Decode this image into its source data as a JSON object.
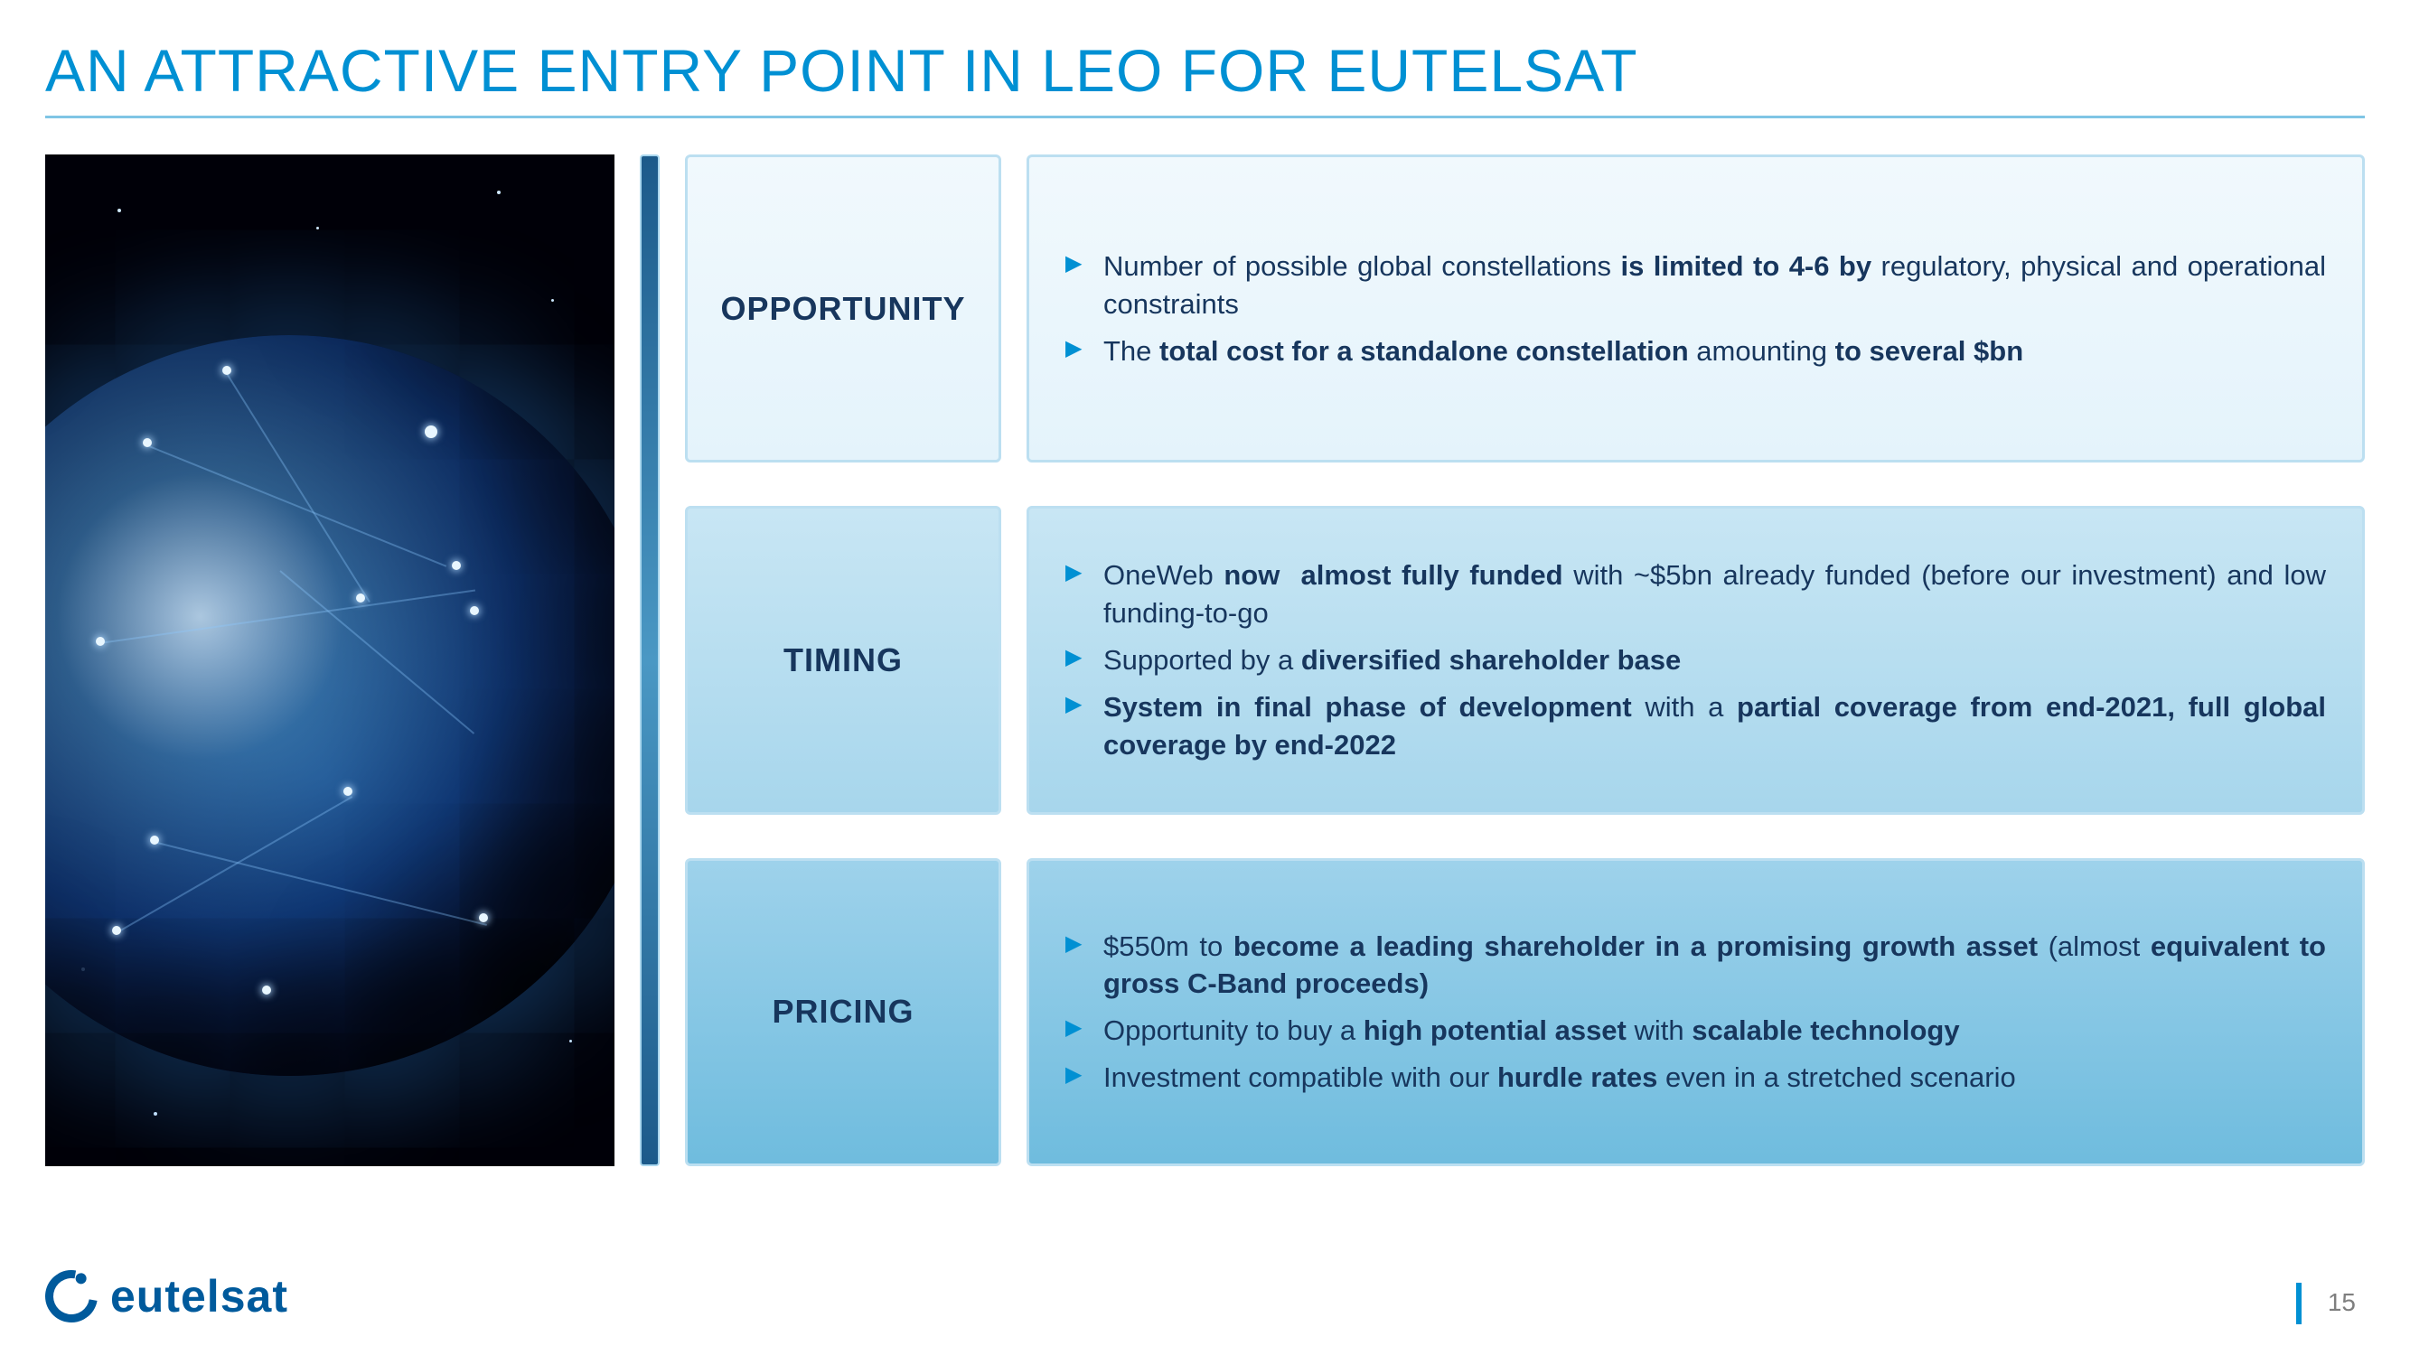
{
  "title": "AN ATTRACTIVE ENTRY POINT IN LEO FOR EUTELSAT",
  "accent_color": "#0090d3",
  "text_color": "#17365d",
  "logo_color": "#005a9c",
  "logo_text": "eutelsat",
  "page_number": "15",
  "box_tones": [
    {
      "bg_top": "#f1f9fd",
      "bg_bottom": "#e4f3fb",
      "border": "#bcdff1"
    },
    {
      "bg_top": "#c8e6f4",
      "bg_bottom": "#a7d6ec",
      "border": "#bcdff1"
    },
    {
      "bg_top": "#9ed2eb",
      "bg_bottom": "#6fbcde",
      "border": "#bcdff1"
    }
  ],
  "rows": [
    {
      "label": "OPPORTUNITY",
      "bullets": [
        "Number of possible global constellations <b>is limited to 4-6 by</b> regulatory, physical and operational constraints",
        "The <b>total cost for a standalone constellation</b> amounting <b>to several $bn</b>"
      ]
    },
    {
      "label": "TIMING",
      "bullets": [
        "OneWeb <b>now&nbsp; almost fully funded</b> with ~$5bn already funded (before our investment) and low funding-to-go",
        "Supported by a <b>diversified shareholder base</b>",
        "<b>System in final phase of development</b> with a <b>partial coverage from end-2021, full global coverage by end-2022</b>"
      ]
    },
    {
      "label": "PRICING",
      "bullets": [
        "$550m to <b>become a leading shareholder in a promising growth asset</b> (almost <b>equivalent to gross C-Band proceeds)</b>",
        "Opportunity to buy a <b>high potential asset</b> with <b>scalable technology</b>",
        "Investment compatible with our <b>hurdle rates</b> even in a stretched scenario"
      ]
    }
  ]
}
